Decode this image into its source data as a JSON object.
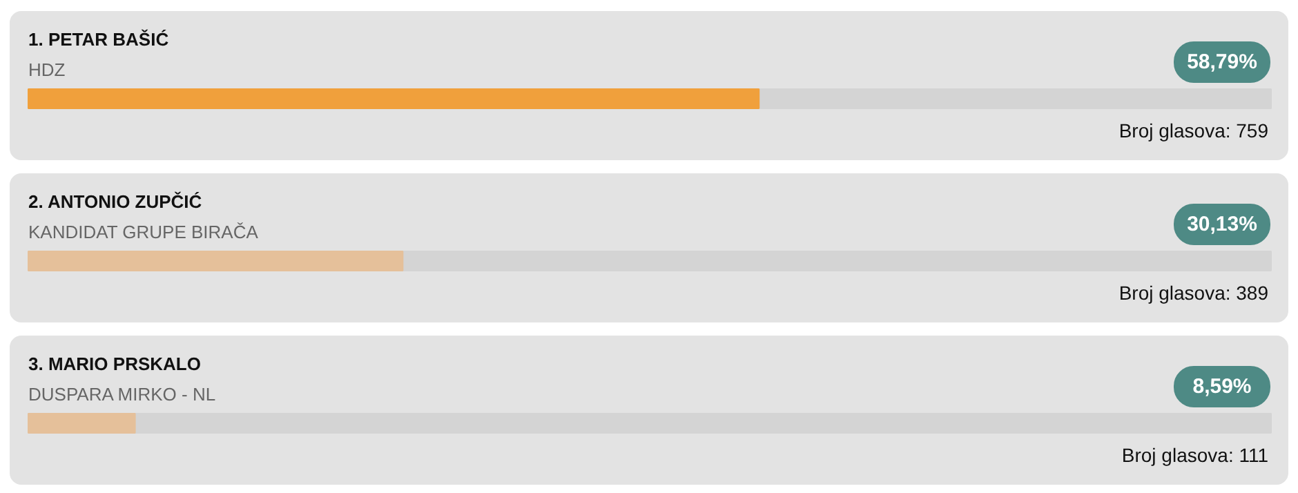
{
  "chart_data": {
    "type": "bar",
    "orientation": "horizontal",
    "categories": [
      "1. PETAR BAŠIĆ",
      "2. ANTONIO ZUPČIĆ",
      "3. MARIO PRSKALO"
    ],
    "values": [
      58.79,
      30.13,
      8.59
    ],
    "value_labels": [
      "58,79%",
      "30,13%",
      "8,59%"
    ],
    "colors": [
      "#f0a03c",
      "#e5c09a",
      "#e5c09a"
    ],
    "xlim": [
      0,
      100
    ],
    "tick_labels": false,
    "annotations": [
      "HDZ",
      "Broj glasova: 759",
      "KANDIDAT GRUPE BIRAČA",
      "Broj glasova: 389",
      "DUSPARA MIRKO - NL",
      "Broj glasova: 111"
    ]
  }
}
